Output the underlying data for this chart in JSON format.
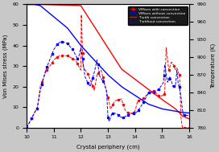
{
  "xlabel": "Crystal periphery (cm)",
  "ylabel_left": "Von Mises stress (MPa)",
  "ylabel_right": "Temperature (K)",
  "xlim": [
    10,
    16
  ],
  "ylim_left": [
    0,
    60
  ],
  "ylim_right": [
    780,
    990
  ],
  "background_color": "#c8c8c8",
  "plot_bg_color": "#ffffff",
  "legend_entries": [
    "VMises with convection",
    "VMises without convection",
    "T with convection",
    "T without convection"
  ]
}
